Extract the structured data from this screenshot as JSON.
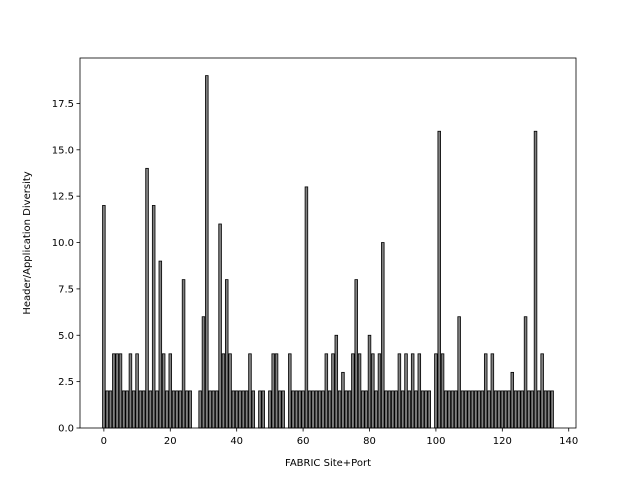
{
  "chart_data": {
    "type": "bar",
    "xlabel": "FABRIC Site+Port",
    "ylabel": "Header/Application Diversity",
    "color": "#808080",
    "edgecolor": "#000000",
    "x": [
      0,
      1,
      2,
      3,
      4,
      5,
      6,
      7,
      8,
      9,
      10,
      11,
      12,
      13,
      14,
      15,
      16,
      17,
      18,
      19,
      20,
      21,
      22,
      23,
      24,
      25,
      26,
      27,
      28,
      29,
      30,
      31,
      32,
      33,
      34,
      35,
      36,
      37,
      38,
      39,
      40,
      41,
      42,
      43,
      44,
      45,
      46,
      47,
      48,
      49,
      50,
      51,
      52,
      53,
      54,
      55,
      56,
      57,
      58,
      59,
      60,
      61,
      62,
      63,
      64,
      65,
      66,
      67,
      68,
      69,
      70,
      71,
      72,
      73,
      74,
      75,
      76,
      77,
      78,
      79,
      80,
      81,
      82,
      83,
      84,
      85,
      86,
      87,
      88,
      89,
      90,
      91,
      92,
      93,
      94,
      95,
      96,
      97,
      98,
      99,
      100,
      101,
      102,
      103,
      104,
      105,
      106,
      107,
      108,
      109,
      110,
      111,
      112,
      113,
      114,
      115,
      116,
      117,
      118,
      119,
      120,
      121,
      122,
      123,
      124,
      125,
      126,
      127,
      128,
      129,
      130,
      131,
      132,
      133,
      134,
      135
    ],
    "values": [
      12,
      2,
      2,
      4,
      4,
      4,
      2,
      2,
      4,
      2,
      4,
      2,
      2,
      14,
      2,
      12,
      2,
      9,
      4,
      2,
      4,
      2,
      2,
      2,
      8,
      2,
      2,
      0,
      0,
      2,
      6,
      19,
      2,
      2,
      2,
      11,
      4,
      8,
      4,
      2,
      2,
      2,
      2,
      2,
      4,
      2,
      0,
      2,
      2,
      0,
      2,
      4,
      4,
      2,
      2,
      0,
      4,
      2,
      2,
      2,
      2,
      13,
      2,
      2,
      2,
      2,
      2,
      4,
      2,
      4,
      5,
      2,
      3,
      2,
      2,
      4,
      8,
      4,
      2,
      2,
      5,
      4,
      2,
      4,
      10,
      2,
      2,
      2,
      2,
      4,
      2,
      4,
      2,
      4,
      2,
      4,
      2,
      2,
      2,
      0,
      4,
      16,
      4,
      2,
      2,
      2,
      2,
      6,
      2,
      2,
      2,
      2,
      2,
      2,
      2,
      4,
      2,
      4,
      2,
      2,
      2,
      2,
      2,
      3,
      2,
      2,
      2,
      6,
      2,
      2,
      16,
      2,
      4,
      2,
      2,
      2
    ],
    "xlim": [
      -7.19,
      142.19
    ],
    "ylim": [
      0,
      19.95
    ],
    "xticks": [
      0,
      20,
      40,
      60,
      80,
      100,
      120,
      140
    ],
    "yticks": [
      {
        "value": 0,
        "label": "0.0"
      },
      {
        "value": 2.5,
        "label": "2.5"
      },
      {
        "value": 5,
        "label": "5.0"
      },
      {
        "value": 7.5,
        "label": "7.5"
      },
      {
        "value": 10,
        "label": "10.0"
      },
      {
        "value": 12.5,
        "label": "12.5"
      },
      {
        "value": 15,
        "label": "15.0"
      },
      {
        "value": 17.5,
        "label": "17.5"
      }
    ],
    "bar_width": 0.8
  }
}
